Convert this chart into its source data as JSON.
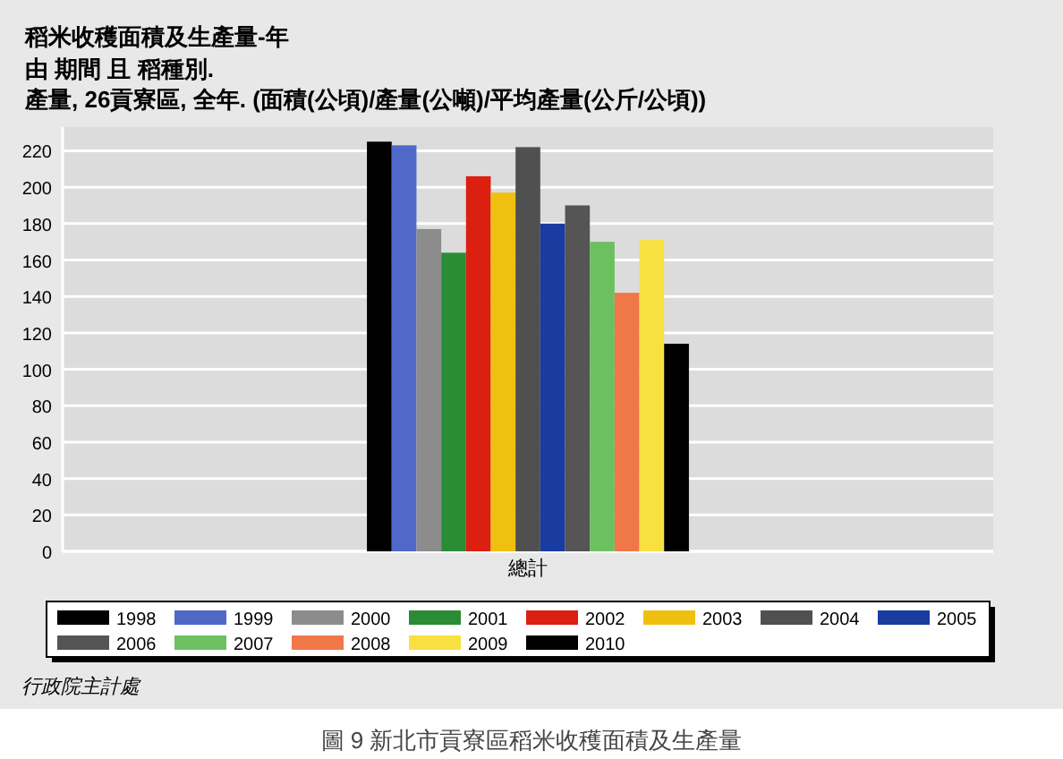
{
  "chart_data": {
    "type": "bar",
    "title": "稻米收穫面積及生產量-年",
    "subtitle": "由 期間 且 稻種別.\n產量, 26貢寮區, 全年. (面積(公頃)/產量(公噸)/平均產量(公斤/公頃))",
    "categories": [
      "總計"
    ],
    "series": [
      {
        "name": "1998",
        "color": "#000000",
        "values": [
          225
        ]
      },
      {
        "name": "1999",
        "color": "#5068c8",
        "values": [
          223
        ]
      },
      {
        "name": "2000",
        "color": "#8c8c8c",
        "values": [
          177
        ]
      },
      {
        "name": "2001",
        "color": "#2a8c34",
        "values": [
          164
        ]
      },
      {
        "name": "2002",
        "color": "#dc2010",
        "values": [
          206
        ]
      },
      {
        "name": "2003",
        "color": "#f0c010",
        "values": [
          197
        ]
      },
      {
        "name": "2004",
        "color": "#505050",
        "values": [
          222
        ]
      },
      {
        "name": "2005",
        "color": "#1a3ca0",
        "values": [
          180
        ]
      },
      {
        "name": "2006",
        "color": "#555555",
        "values": [
          190
        ]
      },
      {
        "name": "2007",
        "color": "#6cc060",
        "values": [
          170
        ]
      },
      {
        "name": "2008",
        "color": "#f07848",
        "values": [
          142
        ]
      },
      {
        "name": "2009",
        "color": "#f8e040",
        "values": [
          171
        ]
      },
      {
        "name": "2010",
        "color": "#000000",
        "values": [
          114
        ]
      }
    ],
    "ylim": [
      0,
      233
    ],
    "yticks": [
      0,
      20,
      40,
      60,
      80,
      100,
      120,
      140,
      160,
      180,
      200,
      220
    ],
    "grid": "y",
    "legend": "bottom",
    "annotations": [
      "行政院主計處",
      "圖 9 新北市貢寮區稻米收穫面積及生產量"
    ]
  }
}
